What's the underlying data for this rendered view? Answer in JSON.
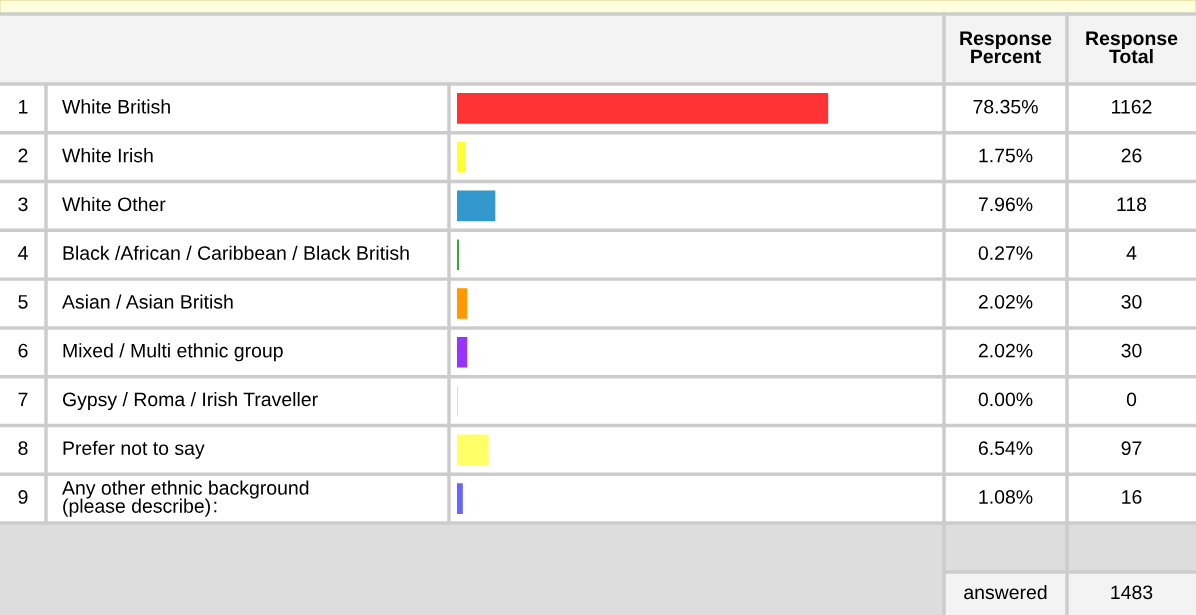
{
  "chart_data": {
    "type": "bar",
    "orientation": "horizontal",
    "categories": [
      "White British",
      "White Irish",
      "White Other",
      "Black /African / Caribbean / Black British",
      "Asian / Asian British",
      "Mixed / Multi ethnic group",
      "Gypsy / Roma / Irish Traveller",
      "Prefer not to say",
      "Any other ethnic background\n(please describe)"
    ],
    "values": [
      78.35,
      1.75,
      7.96,
      0.27,
      2.02,
      2.02,
      0.0,
      6.54,
      1.08
    ],
    "colors": [
      "#ff3333",
      "#ffff33",
      "#3399cc",
      "#33aa33",
      "#ff9900",
      "#9933ff",
      "#cccccc",
      "#ffff66",
      "#6666ff"
    ],
    "value_labels": [
      "78.35%",
      "1.75%",
      "7.96%",
      "0.27%",
      "2.02%",
      "2.02%",
      "0.00%",
      "6.54%",
      "1.08%"
    ],
    "tick_labels": false,
    "annotations": [
      "Response\nPercent",
      "Response\nTotal",
      "1",
      "2",
      "3",
      "4",
      "5",
      "6",
      "7",
      "8",
      "9",
      "1162",
      "26",
      "118",
      "4",
      "30",
      "30",
      "0",
      "97",
      "16",
      "answered",
      "1483",
      ":"
    ]
  }
}
